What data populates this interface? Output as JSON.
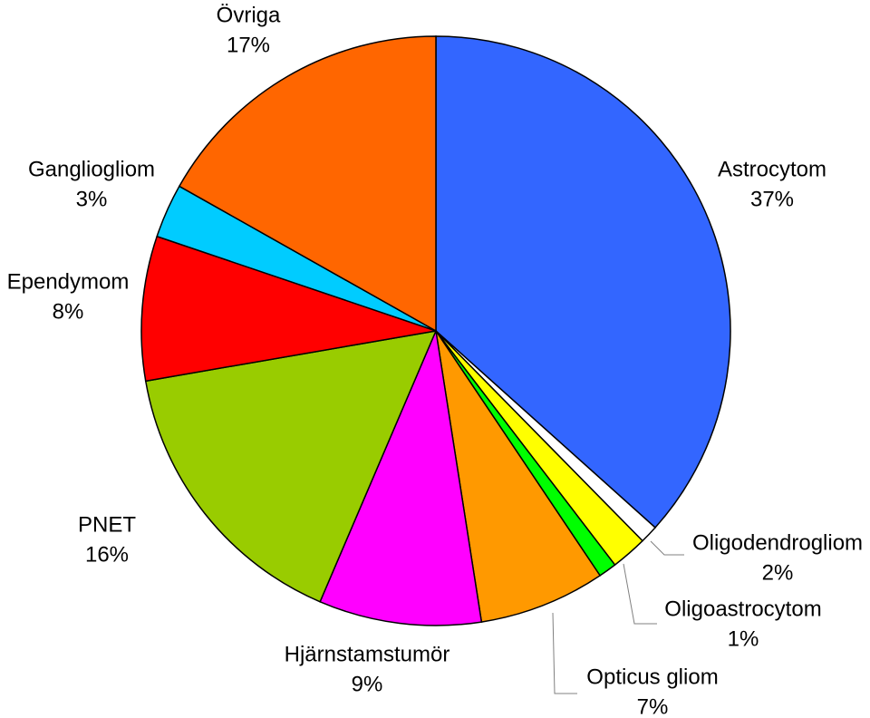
{
  "chart_data": {
    "type": "pie",
    "categories": [
      "Astrocytom",
      null,
      "Oligodendrogliom",
      "Oligoastrocytom",
      "Opticus gliom",
      "Hjärnstamstumör",
      "PNET",
      "Ependymom",
      "Gangliogliom",
      "Övriga"
    ],
    "values": [
      37,
      1,
      2,
      1,
      7,
      9,
      16,
      8,
      3,
      17
    ],
    "value_labels": [
      "37%",
      null,
      "2%",
      "1%",
      "7%",
      "9%",
      "16%",
      "8%",
      "3%",
      "17%"
    ],
    "colors": [
      "#3366ff",
      "#ffffff",
      "#ffff00",
      "#00ff00",
      "#ff9900",
      "#ff00ff",
      "#99cc00",
      "#ff0000",
      "#00ccff",
      "#ff6600"
    ]
  }
}
